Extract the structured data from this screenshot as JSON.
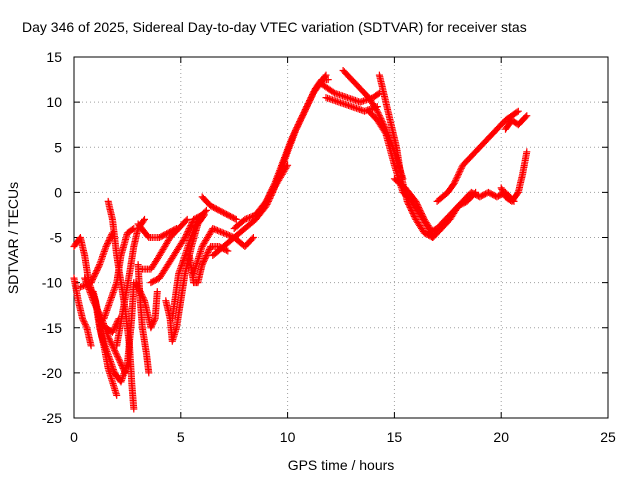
{
  "chart_data": {
    "type": "scatter",
    "title": "Day 346 of 2025, Sidereal Day-to-day VTEC variation (SDTVAR) for receiver stas",
    "xlabel": "GPS time / hours",
    "ylabel": "SDTVAR / TECUs",
    "xlim": [
      0,
      25
    ],
    "ylim": [
      -25,
      15
    ],
    "xticks": [
      "0",
      "5",
      "10",
      "15",
      "20",
      "25"
    ],
    "yticks": [
      "15",
      "10",
      "5",
      "0",
      "-5",
      "-10",
      "-15",
      "-20",
      "-25"
    ],
    "grid": true,
    "marker": "plus",
    "series": [
      {
        "name": "SDTVAR",
        "color": "#ff0000",
        "tracks": [
          [
            [
              0.0,
              -9.5
            ],
            [
              0.2,
              -12
            ],
            [
              0.4,
              -14
            ],
            [
              0.6,
              -15
            ],
            [
              0.8,
              -17
            ]
          ],
          [
            [
              0.0,
              -6
            ],
            [
              0.3,
              -5
            ],
            [
              0.5,
              -7
            ],
            [
              0.7,
              -10
            ],
            [
              1.0,
              -12
            ],
            [
              1.2,
              -15
            ],
            [
              1.4,
              -17
            ],
            [
              1.6,
              -19.5
            ],
            [
              1.8,
              -21
            ],
            [
              2.0,
              -22.5
            ]
          ],
          [
            [
              0.3,
              -10.5
            ],
            [
              0.8,
              -10
            ],
            [
              1.2,
              -8
            ],
            [
              1.5,
              -6
            ],
            [
              1.8,
              -4.5
            ]
          ],
          [
            [
              0.5,
              -9.5
            ],
            [
              0.9,
              -12
            ],
            [
              1.3,
              -14
            ],
            [
              1.6,
              -16
            ],
            [
              2.0,
              -18
            ],
            [
              2.4,
              -20
            ]
          ],
          [
            [
              0.9,
              -11
            ],
            [
              1.1,
              -13
            ],
            [
              1.3,
              -16
            ],
            [
              1.6,
              -18
            ],
            [
              1.9,
              -20
            ],
            [
              2.2,
              -21
            ],
            [
              2.5,
              -19
            ],
            [
              2.7,
              -14
            ],
            [
              2.8,
              -10
            ]
          ],
          [
            [
              1.6,
              -1
            ],
            [
              1.8,
              -3
            ],
            [
              2.0,
              -7
            ],
            [
              2.2,
              -10
            ],
            [
              2.4,
              -13
            ],
            [
              2.6,
              -17
            ],
            [
              2.7,
              -21
            ],
            [
              2.8,
              -24
            ]
          ],
          [
            [
              1.4,
              -14
            ],
            [
              1.7,
              -12
            ],
            [
              2.0,
              -10
            ],
            [
              2.2,
              -7
            ],
            [
              2.5,
              -4.5
            ],
            [
              2.8,
              -4
            ]
          ],
          [
            [
              1.5,
              -15
            ],
            [
              1.8,
              -15.5
            ],
            [
              2.1,
              -14
            ]
          ],
          [
            [
              2.0,
              -17
            ],
            [
              2.3,
              -13
            ],
            [
              2.6,
              -9
            ],
            [
              2.8,
              -6
            ],
            [
              3.0,
              -4
            ],
            [
              3.3,
              -3
            ]
          ],
          [
            [
              3.0,
              -8
            ],
            [
              3.1,
              -12
            ],
            [
              3.2,
              -15
            ],
            [
              3.4,
              -18
            ],
            [
              3.5,
              -20
            ]
          ],
          [
            [
              2.9,
              -10
            ],
            [
              3.3,
              -12
            ],
            [
              3.6,
              -15
            ],
            [
              3.8,
              -14
            ],
            [
              3.9,
              -11
            ]
          ],
          [
            [
              3.0,
              -3.5
            ],
            [
              3.5,
              -5
            ],
            [
              4.0,
              -5
            ],
            [
              4.4,
              -4.5
            ],
            [
              4.8,
              -4
            ]
          ],
          [
            [
              3.2,
              -8.5
            ],
            [
              3.6,
              -8.5
            ],
            [
              4.0,
              -7
            ],
            [
              4.5,
              -5
            ],
            [
              4.9,
              -4
            ],
            [
              5.3,
              -3
            ]
          ],
          [
            [
              3.6,
              -10
            ],
            [
              4.0,
              -9.5
            ],
            [
              4.4,
              -8
            ],
            [
              4.8,
              -6.5
            ],
            [
              5.2,
              -5
            ],
            [
              5.6,
              -3
            ],
            [
              6.0,
              -2.5
            ]
          ],
          [
            [
              4.3,
              -12
            ],
            [
              4.5,
              -14
            ],
            [
              4.6,
              -16.5
            ],
            [
              4.8,
              -15
            ],
            [
              5.0,
              -12
            ],
            [
              5.2,
              -9
            ],
            [
              5.5,
              -6
            ],
            [
              5.8,
              -3.5
            ],
            [
              6.1,
              -2.5
            ]
          ],
          [
            [
              4.6,
              -14
            ],
            [
              4.9,
              -9
            ],
            [
              5.2,
              -7
            ],
            [
              5.4,
              -5.5
            ],
            [
              5.8,
              -3
            ],
            [
              6.2,
              -2
            ]
          ],
          [
            [
              5.4,
              -7
            ],
            [
              5.6,
              -10
            ],
            [
              5.8,
              -10
            ],
            [
              6.0,
              -8
            ],
            [
              6.4,
              -6
            ],
            [
              6.8,
              -6
            ],
            [
              7.2,
              -6.5
            ]
          ],
          [
            [
              5.6,
              -9
            ],
            [
              6.0,
              -6
            ],
            [
              6.5,
              -4
            ],
            [
              7.0,
              -4.5
            ],
            [
              7.5,
              -5
            ],
            [
              8.0,
              -6
            ],
            [
              8.4,
              -5
            ]
          ],
          [
            [
              6.0,
              -0.5
            ],
            [
              6.4,
              -1.5
            ],
            [
              6.8,
              -2
            ],
            [
              7.2,
              -2.5
            ],
            [
              7.6,
              -3
            ]
          ],
          [
            [
              6.5,
              -7
            ],
            [
              7.0,
              -6
            ],
            [
              7.5,
              -5
            ],
            [
              8.0,
              -4
            ],
            [
              8.5,
              -3
            ],
            [
              9.0,
              -1.5
            ],
            [
              9.3,
              0
            ]
          ],
          [
            [
              7.5,
              -4
            ],
            [
              8.0,
              -3
            ],
            [
              8.5,
              -2.5
            ],
            [
              9.0,
              -1
            ],
            [
              9.5,
              1
            ],
            [
              10.0,
              3
            ]
          ],
          [
            [
              9.0,
              -1
            ],
            [
              9.4,
              1
            ],
            [
              9.8,
              3.5
            ],
            [
              10.2,
              6
            ],
            [
              10.6,
              8
            ],
            [
              11.0,
              10
            ],
            [
              11.3,
              11.5
            ],
            [
              11.6,
              12.5
            ],
            [
              11.9,
              12.5
            ]
          ],
          [
            [
              9.3,
              0
            ],
            [
              9.7,
              2.5
            ],
            [
              10.0,
              4.5
            ],
            [
              10.4,
              7
            ],
            [
              10.8,
              9
            ],
            [
              11.2,
              11
            ],
            [
              11.5,
              12
            ],
            [
              11.8,
              13
            ]
          ],
          [
            [
              11.6,
              12
            ],
            [
              12.2,
              11
            ],
            [
              12.8,
              10.5
            ],
            [
              13.4,
              10
            ],
            [
              14.0,
              10.5
            ],
            [
              14.3,
              11
            ]
          ],
          [
            [
              11.8,
              10.5
            ],
            [
              12.4,
              10
            ],
            [
              13.0,
              9.5
            ],
            [
              13.6,
              9
            ],
            [
              14.2,
              9.5
            ]
          ],
          [
            [
              12.6,
              13.5
            ],
            [
              13.0,
              12.5
            ],
            [
              13.4,
              11.5
            ],
            [
              13.8,
              10.5
            ],
            [
              14.2,
              9
            ],
            [
              14.6,
              7
            ],
            [
              15.0,
              4.5
            ],
            [
              15.4,
              1.5
            ]
          ],
          [
            [
              14.3,
              13
            ],
            [
              14.5,
              11
            ],
            [
              14.7,
              9
            ],
            [
              14.9,
              7
            ],
            [
              15.1,
              5
            ],
            [
              15.3,
              2
            ],
            [
              15.6,
              -1
            ],
            [
              16.0,
              -3
            ],
            [
              16.4,
              -4.5
            ],
            [
              16.8,
              -5
            ]
          ],
          [
            [
              13.8,
              9
            ],
            [
              14.2,
              8
            ],
            [
              14.6,
              6.5
            ],
            [
              15.0,
              3
            ],
            [
              15.4,
              0
            ],
            [
              15.8,
              -1
            ],
            [
              16.2,
              -2.5
            ],
            [
              16.6,
              -4
            ],
            [
              16.8,
              -5
            ]
          ],
          [
            [
              15.0,
              1.5
            ],
            [
              15.5,
              0.5
            ],
            [
              16.0,
              -1
            ],
            [
              16.4,
              -3
            ],
            [
              16.8,
              -4.5
            ]
          ],
          [
            [
              16.6,
              -4.5
            ],
            [
              17.0,
              -4
            ],
            [
              17.4,
              -3
            ],
            [
              17.8,
              -2
            ],
            [
              18.2,
              -1
            ],
            [
              18.6,
              0
            ],
            [
              19.0,
              -0.5
            ],
            [
              19.4,
              0
            ],
            [
              19.8,
              -0.5
            ],
            [
              20.2,
              0
            ],
            [
              20.6,
              -1
            ]
          ],
          [
            [
              16.8,
              -5
            ],
            [
              17.2,
              -4
            ],
            [
              17.6,
              -3
            ],
            [
              18.0,
              -1.5
            ],
            [
              18.4,
              -1
            ],
            [
              18.8,
              0
            ]
          ],
          [
            [
              17.0,
              -1
            ],
            [
              17.5,
              0
            ],
            [
              17.8,
              1
            ],
            [
              18.2,
              3
            ],
            [
              18.6,
              4
            ],
            [
              19.0,
              5
            ],
            [
              19.4,
              6
            ],
            [
              19.8,
              7
            ],
            [
              20.2,
              8
            ],
            [
              20.5,
              8.5
            ],
            [
              20.8,
              9
            ]
          ],
          [
            [
              20.0,
              0.5
            ],
            [
              20.2,
              -0.5
            ],
            [
              20.5,
              -1
            ],
            [
              20.8,
              0
            ],
            [
              21.0,
              2
            ],
            [
              21.2,
              4.5
            ]
          ],
          [
            [
              20.2,
              7
            ],
            [
              20.5,
              8
            ],
            [
              20.8,
              7.5
            ],
            [
              21.0,
              8
            ],
            [
              21.2,
              8.5
            ]
          ]
        ]
      }
    ]
  }
}
